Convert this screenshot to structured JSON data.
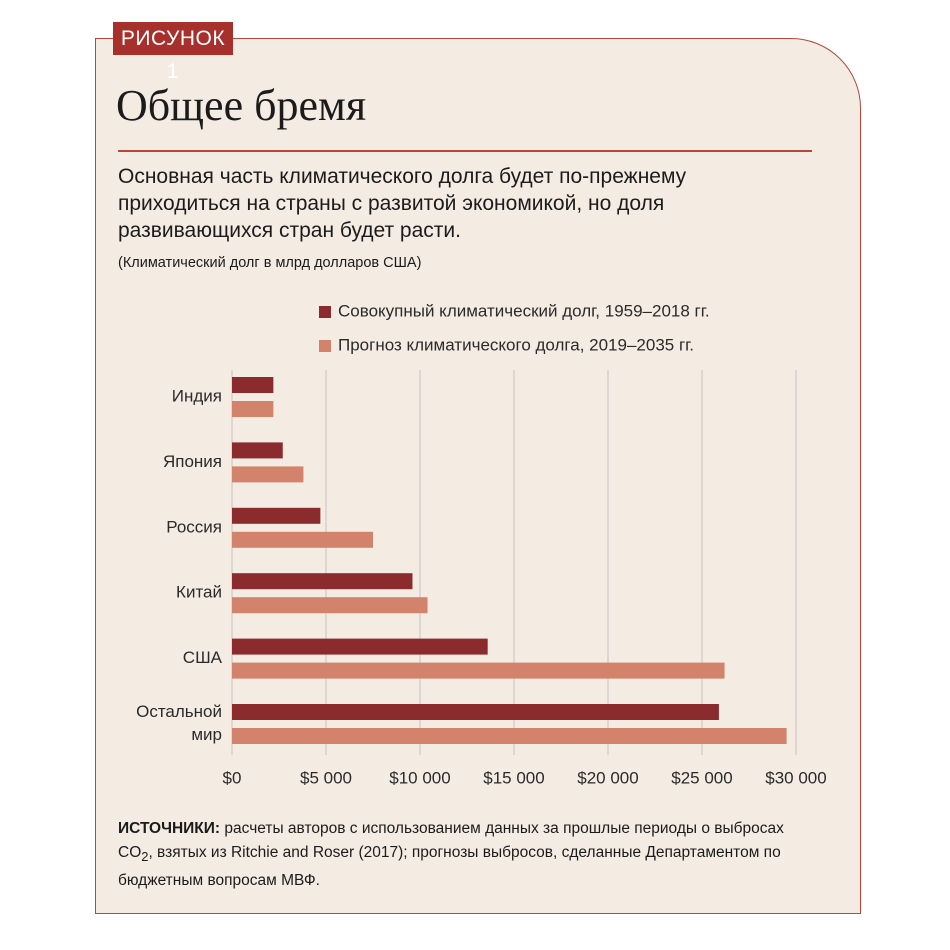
{
  "figure_label": "РИСУНОК 1",
  "chart_data": {
    "type": "hbar",
    "title": "Общее бремя",
    "subtitle": "Основная часть климатического долга будет по-прежнему приходиться на страны с развитой экономикой, но доля развивающихся стран будет расти.",
    "note": "(Климатический долг в млрд долларов США)",
    "categories": [
      "Индия",
      "Япония",
      "Россия",
      "Китай",
      "США",
      "Остальной мир"
    ],
    "series": [
      {
        "name": "Совокупный климатический долг, 1959–2018 гг.",
        "color": "#8c2b2d",
        "values": [
          2200,
          2700,
          4700,
          9600,
          13600,
          25900
        ]
      },
      {
        "name": "Прогноз климатического долга, 2019–2035 гг.",
        "color": "#d3826b",
        "values": [
          2200,
          3800,
          7500,
          10400,
          26200,
          29500
        ]
      }
    ],
    "xlim": [
      0,
      30000
    ],
    "xticks": [
      {
        "value": 0,
        "label": "$0"
      },
      {
        "value": 5000,
        "label": "$5 000"
      },
      {
        "value": 10000,
        "label": "$10 000"
      },
      {
        "value": 15000,
        "label": "$15 000"
      },
      {
        "value": 20000,
        "label": "$20 000"
      },
      {
        "value": 25000,
        "label": "$25 000"
      },
      {
        "value": 30000,
        "label": "$30 000"
      }
    ],
    "grid": true
  },
  "sources": {
    "label": "ИСТОЧНИКИ:",
    "text_before": "расчеты авторов с использованием данных за прошлые периоды о выбросах CO",
    "subscript": "2",
    "text_after": ", взятых из Ritchie and Roser (2017); прогнозы выбросов, сделанные Департаментом по бюджетным вопросам МВФ."
  }
}
